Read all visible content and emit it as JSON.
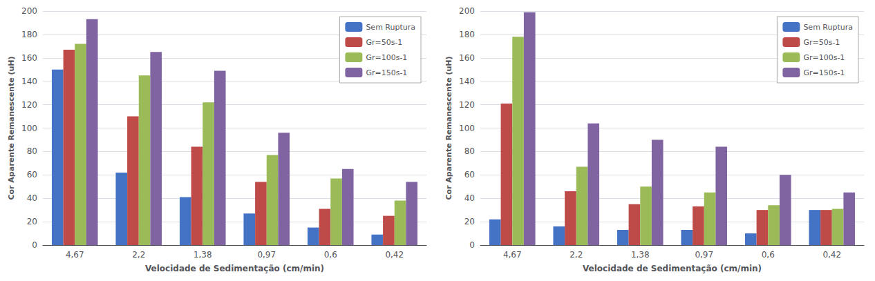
{
  "chart_data": [
    {
      "type": "bar",
      "categories": [
        "4,67",
        "2,2",
        "1,38",
        "0,97",
        "0,6",
        "0,42"
      ],
      "series": [
        {
          "name": "Sem Ruptura",
          "color": "#4472C4",
          "values": [
            150,
            62,
            41,
            27,
            15,
            9
          ]
        },
        {
          "name": "Gr=50s-1",
          "color": "#BE4B48",
          "values": [
            167,
            110,
            84,
            54,
            31,
            25
          ]
        },
        {
          "name": "Gr=100s-1",
          "color": "#9BBB59",
          "values": [
            172,
            145,
            122,
            77,
            57,
            38
          ]
        },
        {
          "name": "Gr=150s-1",
          "color": "#8064A2",
          "values": [
            193,
            165,
            149,
            96,
            65,
            54
          ]
        }
      ],
      "xlabel": "Velocidade de Sedimentação (cm/min)",
      "ylabel": "Cor Aparente Remanescente (uH)",
      "ylim": [
        0,
        200
      ],
      "yticks": [
        0,
        20,
        40,
        60,
        80,
        100,
        120,
        140,
        160,
        180,
        200
      ],
      "grid": true,
      "legend": "upper right"
    },
    {
      "type": "bar",
      "categories": [
        "4,67",
        "2,2",
        "1,38",
        "0,97",
        "0,6",
        "0,42"
      ],
      "series": [
        {
          "name": "Sem Ruptura",
          "color": "#4472C4",
          "values": [
            22,
            16,
            13,
            13,
            10,
            30
          ]
        },
        {
          "name": "Gr=50s-1",
          "color": "#BE4B48",
          "values": [
            121,
            46,
            35,
            33,
            30,
            30
          ]
        },
        {
          "name": "Gr=100s-1",
          "color": "#9BBB59",
          "values": [
            178,
            67,
            50,
            45,
            34,
            31
          ]
        },
        {
          "name": "Gr=150s-1",
          "color": "#8064A2",
          "values": [
            199,
            104,
            90,
            84,
            60,
            45
          ]
        }
      ],
      "xlabel": "Velocidade de Sedimentação (cm/min)",
      "ylabel": "Cor Aparente Remanescente (uH)",
      "ylim": [
        0,
        200
      ],
      "yticks": [
        0,
        20,
        40,
        60,
        80,
        100,
        120,
        140,
        160,
        180,
        200
      ],
      "grid": true,
      "legend": "upper right"
    }
  ]
}
